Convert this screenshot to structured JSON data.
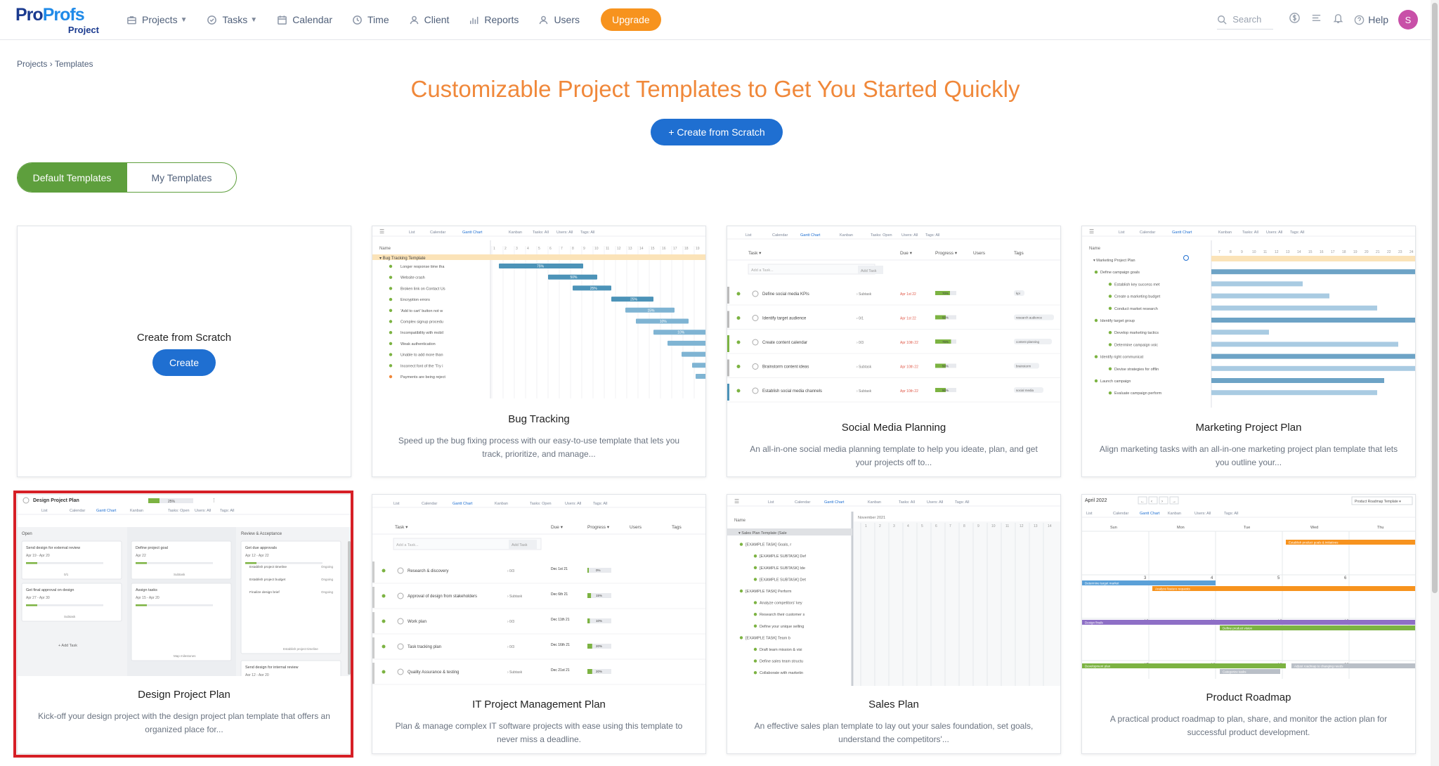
{
  "logo": {
    "brand_a": "Pro",
    "brand_b": "Profs",
    "sub": "Project"
  },
  "nav": {
    "items": [
      {
        "label": "Projects",
        "icon": "briefcase-icon",
        "caret": true
      },
      {
        "label": "Tasks",
        "icon": "check-circle-icon",
        "caret": true
      },
      {
        "label": "Calendar",
        "icon": "calendar-icon",
        "caret": false
      },
      {
        "label": "Time",
        "icon": "clock-icon",
        "caret": false
      },
      {
        "label": "Client",
        "icon": "client-icon",
        "caret": false
      },
      {
        "label": "Reports",
        "icon": "bar-chart-icon",
        "caret": false
      },
      {
        "label": "Users",
        "icon": "user-icon",
        "caret": false
      }
    ],
    "upgrade": "Upgrade",
    "search_placeholder": "Search",
    "help": "Help",
    "avatar_initial": "S"
  },
  "breadcrumb": {
    "parent": "Projects",
    "sep": "›",
    "current": "Templates"
  },
  "headline": "Customizable Project Templates to Get You Started Quickly",
  "create_scratch_button": "+ Create from Scratch",
  "tabs": {
    "default": "Default Templates",
    "mine": "My Templates"
  },
  "scratch_card": {
    "title": "Create from Scratch",
    "button": "Create"
  },
  "cards": [
    {
      "title": "Bug Tracking",
      "desc": "Speed up the bug fixing process with our easy-to-use template that lets you track, prioritize, and manage..."
    },
    {
      "title": "Social Media Planning",
      "desc": "An all-in-one social media planning template to help you ideate, plan, and get your projects off to..."
    },
    {
      "title": "Marketing Project Plan",
      "desc": "Align marketing tasks with an all-in-one marketing project plan template that lets you outline your..."
    },
    {
      "title": "Design Project Plan",
      "desc": "Kick-off your design project with the design project plan template that offers an organized place for..."
    },
    {
      "title": "IT Project Management Plan",
      "desc": "Plan & manage complex IT software projects with ease using this template to never miss a deadline."
    },
    {
      "title": "Sales Plan",
      "desc": "An effective sales plan template to lay out your sales foundation, set goals, understand the competitors'..."
    },
    {
      "title": "Product Roadmap",
      "desc": "A practical product roadmap to plan, share, and monitor the action plan for successful product development."
    }
  ],
  "previews": {
    "bug": {
      "toolbar": [
        "List",
        "Calendar",
        "Gantt Chart",
        "Kanban",
        "Tasks: All",
        "Users: All",
        "Tags: All"
      ],
      "name_header": "Name",
      "group": "Bug Tracking Template",
      "rows": [
        "Longer response time tha",
        "Website crash",
        "Broken link on Contact Us",
        "Encryption errors",
        "'Add to cart' button not w",
        "Complex signup procedu",
        "Incompatibility with mobil",
        "Weak authentication",
        "Unable to add more than",
        "Incorrect font of the 'Try i",
        "Payments are being reject"
      ],
      "bars": [
        "75%",
        "50%",
        "25%",
        "25%",
        "15%",
        "10%",
        "10%"
      ]
    },
    "social": {
      "toolbar": [
        "List",
        "Calendar",
        "Gantt Chart",
        "Kanban",
        "Tasks: Open",
        "Users: All",
        "Tags: All"
      ],
      "headers": [
        "Task",
        "Due",
        "Progress",
        "Users",
        "Tags"
      ],
      "add": "Add a Task...",
      "add_btn": "Add Task",
      "rows": [
        {
          "task": "Define social media KPIs",
          "sub": "Subtask",
          "due": "Apr 1st 22",
          "prog": "70%",
          "tag": "kpi"
        },
        {
          "task": "Identify target audience",
          "sub": "0/1",
          "due": "Apr 1st 22",
          "prog": "50%",
          "tag": "research audience"
        },
        {
          "task": "Create content calendar",
          "sub": "0/3",
          "due": "Apr 10th 22",
          "prog": "75%",
          "tag": "content planning"
        },
        {
          "task": "Brainstorm content ideas",
          "sub": "Subtask",
          "due": "Apr 10th 22",
          "prog": "50%",
          "tag": "brainstorm"
        },
        {
          "task": "Establish social media channels",
          "sub": "Subtask",
          "due": "Apr 10th 22",
          "prog": "50%",
          "tag": "social media"
        }
      ]
    },
    "marketing": {
      "toolbar": [
        "List",
        "Calendar",
        "Gantt Chart",
        "Kanban",
        "Tasks: All",
        "Users: All",
        "Tags: All"
      ],
      "name_header": "Name",
      "rows": [
        "Marketing Project Plan",
        "Define campaign goals",
        "Establish key success met",
        "Create a marketing budget",
        "Conduct market research",
        "Identify target group",
        "Develop marketing tactics",
        "Determine campaign voic",
        "Identify right communicat",
        "Devise strategies for offlin",
        "Launch campaign",
        "Evaluate campaign perform"
      ]
    },
    "design": {
      "title": "Design Project Plan",
      "progress": "25%",
      "toolbar": [
        "List",
        "Calendar",
        "Gantt Chart",
        "Kanban",
        "Tasks: Open",
        "Users: All",
        "Tags: All"
      ],
      "columns": [
        "Open",
        "In progress",
        "Review & Acceptance"
      ],
      "open_cards": [
        {
          "t": "Send design for external review",
          "d": "Apr 19 - Apr 20",
          "c": "0/1"
        },
        {
          "t": "Get final approval on design",
          "d": "Apr 27 - Apr 30",
          "c": "Subtask"
        }
      ],
      "prog_cards": [
        {
          "t": "Define project goal",
          "d": "Apr 22",
          "c": "Subtask"
        },
        {
          "t": "Assign tasks",
          "d": "Apr 15 - Apr 20",
          "c": "Map milestones"
        }
      ],
      "review_cards": [
        {
          "t": "Get due approvals",
          "d": "Apr 12 - Apr 22",
          "c": "Establish project timeline"
        },
        {
          "t": "Send design for internal review",
          "d": "Apr 12 - Apr 20",
          "c": ""
        }
      ],
      "add_task": "+ Add Task",
      "ongoing": "Ongoing",
      "sub_items": [
        "Establish project timeline",
        "Establish project budget",
        "Finalize design brief"
      ]
    },
    "it": {
      "toolbar": [
        "List",
        "Calendar",
        "Gantt Chart",
        "Kanban",
        "Tasks: Open",
        "Users: All",
        "Tags: All"
      ],
      "headers": [
        "Task",
        "Due",
        "Progress",
        "Users",
        "Tags"
      ],
      "add": "Add a Task...",
      "add_btn": "Add Task",
      "rows": [
        {
          "task": "Research & discovery",
          "sub": "0/3",
          "due": "Dec 1st 21",
          "prog": "0%"
        },
        {
          "task": "Approval of design from stakeholders",
          "sub": "Subtask",
          "due": "Dec 6th 21",
          "prog": "15%"
        },
        {
          "task": "Work plan",
          "sub": "0/3",
          "due": "Dec 11th 21",
          "prog": "10%"
        },
        {
          "task": "Task tracking plan",
          "sub": "0/3",
          "due": "Dec 16th 21",
          "prog": "20%"
        },
        {
          "task": "Quality Assurance & testing",
          "sub": "Subtask",
          "due": "Dec 21st 21",
          "prog": "20%"
        }
      ]
    },
    "sales": {
      "toolbar": [
        "List",
        "Calendar",
        "Gantt Chart",
        "Kanban",
        "Tasks: All",
        "Users: All",
        "Tags: All"
      ],
      "name_header": "Name",
      "month": "November 2021",
      "rows": [
        "Sales Plan Template (Sale",
        "[EXAMPLE TASK] Goals, r",
        "[EXAMPLE SUBTASK] Def",
        "[EXAMPLE SUBTASK] Ide",
        "[EXAMPLE SUBTASK] Det",
        "[EXAMPLE TASK] Perform",
        "Analyze competitors' key",
        "Research their customer s",
        "Define your unique selling",
        "[EXAMPLE TASK] Team b",
        "Draft team mission & visi",
        "Define sales team structu",
        "Collaborate with marketin"
      ]
    },
    "roadmap": {
      "month": "April 2022",
      "template_label": "Product Roadmap Template",
      "toolbar": [
        "List",
        "Calendar",
        "Gantt Chart",
        "Kanban",
        "Users: All",
        "Tags: All"
      ],
      "days": [
        "Sun",
        "Mon",
        "Tue",
        "Wed",
        "Thu"
      ],
      "dates": [
        "3",
        "4",
        "5",
        "6",
        "10",
        "11",
        "12",
        "13",
        "17",
        "18",
        "19",
        "20"
      ],
      "events": [
        "Establish product goals & initiatives",
        "Determine target market",
        "Analyze feature requests",
        "Design finals",
        "Define product vision",
        "Development plan",
        "Categorize tasks",
        "Adjust roadmap to changing needs"
      ]
    }
  },
  "colors": {
    "brand": "#1a3a8f",
    "accent_orange": "#f0883a",
    "primary_blue": "#1f6fd1",
    "green": "#5e9f3d",
    "highlight_red": "#d61f26"
  }
}
